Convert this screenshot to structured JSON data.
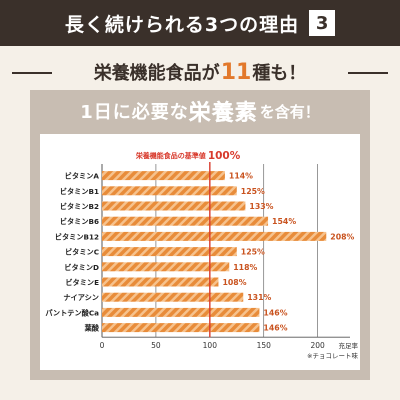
{
  "header": {
    "title": "長く続けられる3つの理由",
    "number": "3"
  },
  "tagline": {
    "part1": "栄養機能食品が",
    "highlight": "11",
    "part2": "種も！"
  },
  "panel": {
    "title_a": "1日に必要な",
    "title_b": "栄養素",
    "title_c": "を含有！"
  },
  "colors": {
    "bar": "#e88c3a",
    "bar_stripe": "#f6c28d",
    "accent": "#d83a2c",
    "header_bg": "#3a302a"
  },
  "chart_data": {
    "type": "bar",
    "orientation": "horizontal",
    "categories": [
      "ビタミンA",
      "ビタミンB1",
      "ビタミンB2",
      "ビタミンB6",
      "ビタミンB12",
      "ビタミンC",
      "ビタミンD",
      "ビタミンE",
      "ナイアシン",
      "パントテン酸Ca",
      "葉酸"
    ],
    "values": [
      114,
      125,
      133,
      154,
      208,
      125,
      118,
      108,
      131,
      146,
      146
    ],
    "value_labels": [
      "114%",
      "125%",
      "133%",
      "154%",
      "208%",
      "125%",
      "118%",
      "108%",
      "131%",
      "146%",
      "146%"
    ],
    "xlim": [
      0,
      230
    ],
    "xticks": [
      "0",
      "50",
      "100",
      "150",
      "200"
    ],
    "xlabel": "充足率",
    "reference_line": {
      "value": 100,
      "label": "栄養機能食品の基準値",
      "label_value": "100%"
    },
    "note": "※チョコレート味"
  }
}
